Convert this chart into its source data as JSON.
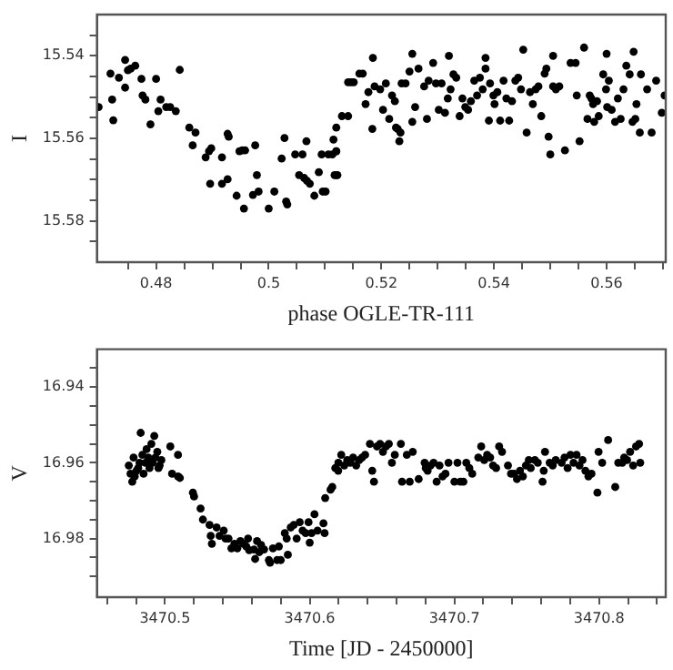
{
  "chart_data": [
    {
      "type": "scatter",
      "xlabel": "phase OGLE-TR-111",
      "ylabel": "I",
      "marker": "circle",
      "grid": false,
      "xlim": [
        0.4695,
        0.5705
      ],
      "ylim": [
        15.59,
        15.53
      ],
      "xticks": [
        {
          "value": 0.475,
          "label": null
        },
        0.48,
        {
          "value": 0.485,
          "label": null
        },
        {
          "value": 0.49,
          "label": null
        },
        {
          "value": 0.495,
          "label": null
        },
        0.5,
        {
          "value": 0.505,
          "label": null
        },
        {
          "value": 0.51,
          "label": null
        },
        {
          "value": 0.515,
          "label": null
        },
        0.52,
        {
          "value": 0.525,
          "label": null
        },
        {
          "value": 0.53,
          "label": null
        },
        {
          "value": 0.535,
          "label": null
        },
        0.54,
        {
          "value": 0.545,
          "label": null
        },
        {
          "value": 0.55,
          "label": null
        },
        {
          "value": 0.555,
          "label": null
        },
        0.56,
        {
          "value": 0.565,
          "label": null
        },
        {
          "value": 0.57,
          "label": null
        }
      ],
      "yticks": [
        {
          "value": 15.535,
          "label": null
        },
        15.54,
        {
          "value": 15.545,
          "label": null
        },
        {
          "value": 15.55,
          "label": null
        },
        {
          "value": 15.555,
          "label": null
        },
        15.56,
        {
          "value": 15.565,
          "label": null
        },
        {
          "value": 15.57,
          "label": null
        },
        {
          "value": 15.575,
          "label": null
        },
        15.58,
        {
          "value": 15.585,
          "label": null
        }
      ],
      "series": [
        {
          "color": "#000000",
          "x": [
            0.4698,
            0.4719,
            0.4722,
            0.4724,
            0.4734,
            0.4745,
            0.475,
            0.4755,
            0.4763,
            0.4774,
            0.4776,
            0.4781,
            0.479,
            0.48,
            0.4804,
            0.4808,
            0.4818,
            0.4825,
            0.4835,
            0.4842,
            0.4859,
            0.4865,
            0.487,
            0.4888,
            0.4894,
            0.4896,
            0.4898,
            0.4917,
            0.4917,
            0.4927,
            0.4927,
            0.4929,
            0.4943,
            0.4948,
            0.4953,
            0.4956,
            0.4958,
            0.4972,
            0.4976,
            0.4979,
            0.4982,
            0.5,
            0.501,
            0.5023,
            0.5028,
            0.5031,
            0.5033,
            0.5047,
            0.5054,
            0.506,
            0.5063,
            0.5067,
            0.5068,
            0.5073,
            0.5081,
            0.5089,
            0.5094,
            0.5096,
            0.5101,
            0.5106,
            0.5113,
            0.5115,
            0.5117,
            0.512,
            0.5122,
            0.512,
            0.512,
            0.512,
            0.513,
            0.5141,
            0.5141,
            0.5146,
            0.5151,
            0.5161,
            0.5167,
            0.5172,
            0.5177,
            0.5184,
            0.5188,
            0.5198,
            0.5203,
            0.5208,
            0.5214,
            0.5219,
            0.5224,
            0.5226,
            0.5229,
            0.5232,
            0.5234,
            0.5236,
            0.5243,
            0.525,
            0.5255,
            0.526,
            0.5266,
            0.5276,
            0.5281,
            0.5284,
            0.5292,
            0.5297,
            0.5302,
            0.5307,
            0.5313,
            0.5318,
            0.5323,
            0.5328,
            0.5333,
            0.5339,
            0.5344,
            0.5349,
            0.5354,
            0.5359,
            0.5365,
            0.537,
            0.5375,
            0.538,
            0.5385,
            0.5391,
            0.5393,
            0.5399,
            0.5401,
            0.5406,
            0.5411,
            0.5417,
            0.5422,
            0.5427,
            0.5432,
            0.5438,
            0.5443,
            0.5448,
            0.5458,
            0.5464,
            0.5469,
            0.5474,
            0.5479,
            0.5484,
            0.549,
            0.5493,
            0.5497,
            0.55,
            0.5505,
            0.551,
            0.5516,
            0.5526,
            0.5536,
            0.5545,
            0.5547,
            0.5552,
            0.5566,
            0.557,
            0.5573,
            0.5576,
            0.5578,
            0.5583,
            0.5586,
            0.5594,
            0.5599,
            0.5601,
            0.5604,
            0.5609,
            0.5615,
            0.562,
            0.5625,
            0.563,
            0.5635,
            0.5641,
            0.5646,
            0.5651,
            0.5653,
            0.5659,
            0.5661,
            0.5672,
            0.568,
            0.5688,
            0.5698,
            0.5703,
            0.5185,
            0.5255,
            0.532,
            0.5385,
            0.5452,
            0.5505,
            0.556,
            0.56,
            0.5648,
            0.4745
          ],
          "values": [
            15.5524,
            15.5443,
            15.5506,
            15.5556,
            15.5453,
            15.5477,
            15.5435,
            15.5431,
            15.5424,
            15.5456,
            15.5496,
            15.5506,
            15.5566,
            15.5456,
            15.5534,
            15.5506,
            15.5524,
            15.5524,
            15.5534,
            15.5434,
            15.5574,
            15.5617,
            15.5586,
            15.5646,
            15.5631,
            15.571,
            15.5624,
            15.5646,
            15.571,
            15.5589,
            15.5699,
            15.5596,
            15.5739,
            15.5631,
            15.5629,
            15.577,
            15.5629,
            15.5737,
            15.5617,
            15.5689,
            15.5729,
            15.577,
            15.5729,
            15.5649,
            15.5599,
            15.5753,
            15.576,
            15.5639,
            15.5689,
            15.5639,
            15.5696,
            15.5607,
            15.5703,
            15.571,
            15.5739,
            15.5682,
            15.5639,
            15.5729,
            15.5729,
            15.5639,
            15.5639,
            15.5603,
            15.5689,
            15.5631,
            15.5689,
            15.5574,
            15.5631,
            15.5689,
            15.5546,
            15.5546,
            15.5464,
            15.5464,
            15.5464,
            15.5443,
            15.5443,
            15.5517,
            15.5488,
            15.5577,
            15.5474,
            15.5481,
            15.5531,
            15.5467,
            15.5553,
            15.5496,
            15.551,
            15.5574,
            15.5577,
            15.5607,
            15.5586,
            15.5467,
            15.5467,
            15.5438,
            15.556,
            15.5524,
            15.5431,
            15.5474,
            15.5553,
            15.546,
            15.5417,
            15.5467,
            15.5531,
            15.5467,
            15.5538,
            15.5503,
            15.5481,
            15.5445,
            15.5453,
            15.5546,
            15.5503,
            15.5524,
            15.5531,
            15.551,
            15.546,
            15.5496,
            15.5453,
            15.5481,
            15.5431,
            15.5557,
            15.5467,
            15.5496,
            15.5517,
            15.5488,
            15.5557,
            15.546,
            15.5503,
            15.5557,
            15.551,
            15.546,
            15.5453,
            15.5481,
            15.5586,
            15.5488,
            15.5517,
            15.5481,
            15.5474,
            15.5546,
            15.5443,
            15.5431,
            15.5596,
            15.5639,
            15.5474,
            15.5481,
            15.5474,
            15.5629,
            15.5417,
            15.5417,
            15.5496,
            15.5607,
            15.5553,
            15.5496,
            15.5503,
            15.5517,
            15.556,
            15.551,
            15.5546,
            15.5445,
            15.5481,
            15.5524,
            15.546,
            15.5531,
            15.556,
            15.5503,
            15.5553,
            15.5481,
            15.5424,
            15.5445,
            15.556,
            15.5553,
            15.5517,
            15.5586,
            15.5445,
            15.5481,
            15.5586,
            15.546,
            15.5538,
            15.5496,
            15.5405,
            15.5395,
            15.54,
            15.5405,
            15.5385,
            15.54,
            15.538,
            15.5395,
            15.539,
            15.541
          ]
        }
      ]
    },
    {
      "type": "scatter",
      "xlabel": "Time [JD - 2450000]",
      "ylabel": "V",
      "marker": "circle",
      "grid": false,
      "xlim": [
        3470.453,
        3470.846
      ],
      "ylim": [
        16.9955,
        16.93
      ],
      "xticks": [
        {
          "value": 3470.46,
          "label": null
        },
        {
          "value": 3470.48,
          "label": null
        },
        3470.5,
        {
          "value": 3470.52,
          "label": null
        },
        {
          "value": 3470.54,
          "label": null
        },
        {
          "value": 3470.56,
          "label": null
        },
        {
          "value": 3470.58,
          "label": null
        },
        3470.6,
        {
          "value": 3470.62,
          "label": null
        },
        {
          "value": 3470.64,
          "label": null
        },
        {
          "value": 3470.66,
          "label": null
        },
        {
          "value": 3470.68,
          "label": null
        },
        3470.7,
        {
          "value": 3470.72,
          "label": null
        },
        {
          "value": 3470.74,
          "label": null
        },
        {
          "value": 3470.76,
          "label": null
        },
        {
          "value": 3470.78,
          "label": null
        },
        3470.8,
        {
          "value": 3470.82,
          "label": null
        },
        {
          "value": 3470.84,
          "label": null
        }
      ],
      "yticks": [
        {
          "value": 16.935,
          "label": null
        },
        16.94,
        {
          "value": 16.945,
          "label": null
        },
        {
          "value": 16.95,
          "label": null
        },
        {
          "value": 16.955,
          "label": null
        },
        16.96,
        {
          "value": 16.965,
          "label": null
        },
        {
          "value": 16.97,
          "label": null
        },
        {
          "value": 16.975,
          "label": null
        },
        16.98,
        {
          "value": 16.985,
          "label": null
        },
        {
          "value": 16.99,
          "label": null
        }
      ],
      "series": [
        {
          "color": "#000000",
          "x": [
            3470.475,
            3470.4762,
            3470.4774,
            3470.4783,
            3470.4791,
            3470.4803,
            3470.4815,
            3470.4824,
            3470.4832,
            3470.4844,
            3470.4852,
            3470.4865,
            3470.4873,
            3470.4885,
            3470.4893,
            3470.4906,
            3470.4914,
            3470.4926,
            3470.4934,
            3470.4947,
            3470.4955,
            3470.4963,
            3470.4975,
            3470.5037,
            3470.5049,
            3470.509,
            3470.509,
            3470.5103,
            3470.5193,
            3470.5201,
            3470.5246,
            3470.5262,
            3470.5308,
            3470.5316,
            3470.5324,
            3470.5357,
            3470.5377,
            3470.5406,
            3470.5418,
            3470.5439,
            3470.5459,
            3470.548,
            3470.55,
            3470.5521,
            3470.5541,
            3470.5562,
            3470.5574,
            3470.5582,
            3470.5615,
            3470.5623,
            3470.5636,
            3470.5652,
            3470.5664,
            3470.5685,
            3470.5718,
            3470.5726,
            3470.5746,
            3470.5775,
            3470.5787,
            3470.58,
            3470.5828,
            3470.5841,
            3470.5849,
            3470.5869,
            3470.589,
            3470.591,
            3470.5931,
            3470.5951,
            3470.5972,
            3470.5992,
            3470.6,
            3470.6013,
            3470.6033,
            3470.6054,
            3470.6095,
            3470.6103,
            3470.6107,
            3470.6144,
            3470.6156,
            3470.6197,
            3470.6177,
            3470.6198,
            3470.6218,
            3470.6239,
            3470.6259,
            3470.628,
            3470.63,
            3470.6321,
            3470.6342,
            3470.6362,
            3470.6383,
            3470.6416,
            3470.6432,
            3470.6444,
            3470.6465,
            3470.6486,
            3470.6506,
            3470.6527,
            3470.6547,
            3470.6568,
            3470.6588,
            3470.663,
            3470.6638,
            3470.6671,
            3470.6691,
            3470.6712,
            3470.6753,
            3470.6794,
            3470.6802,
            3470.6815,
            3470.6835,
            3470.6856,
            3470.6877,
            3470.6897,
            3470.6918,
            3470.6938,
            3470.6959,
            3470.7,
            3470.7021,
            3470.7041,
            3470.7062,
            3470.7082,
            3470.7103,
            3470.7123,
            3470.7165,
            3470.7185,
            3470.7206,
            3470.7226,
            3470.7247,
            3470.7267,
            3470.7288,
            3470.7309,
            3470.7329,
            3470.737,
            3470.7391,
            3470.7412,
            3470.7432,
            3470.7453,
            3470.7473,
            3470.7494,
            3470.7514,
            3470.7527,
            3470.7556,
            3470.7576,
            3470.7609,
            3470.7617,
            3470.7626,
            3470.7658,
            3470.7679,
            3470.77,
            3470.7741,
            3470.7761,
            3470.7782,
            3470.7802,
            3470.7823,
            3470.7844,
            3470.7864,
            3470.7885,
            3470.7905,
            3470.7926,
            3470.7947,
            3470.7988,
            3470.7996,
            3470.8021,
            3470.8062,
            3470.8111,
            3470.8132,
            3470.816,
            3470.8173,
            3470.8193,
            3470.8214,
            3470.8235,
            3470.8255,
            3470.8276,
            3470.8284
          ],
          "values": [
            16.9607,
            16.9629,
            16.965,
            16.9586,
            16.9636,
            16.9621,
            16.9614,
            16.96,
            16.9521,
            16.9579,
            16.9629,
            16.96,
            16.9564,
            16.9586,
            16.9614,
            16.955,
            16.96,
            16.9529,
            16.9586,
            16.9571,
            16.9614,
            16.9607,
            16.9593,
            16.9557,
            16.9629,
            16.9579,
            16.9636,
            16.964,
            16.9679,
            16.9689,
            16.9721,
            16.975,
            16.9764,
            16.9793,
            16.9814,
            16.9771,
            16.9793,
            16.9779,
            16.98,
            16.98,
            16.9826,
            16.9814,
            16.9826,
            16.9807,
            16.9814,
            16.9821,
            16.98,
            16.9831,
            16.9829,
            16.9854,
            16.9807,
            16.9836,
            16.9817,
            16.9829,
            16.9857,
            16.9864,
            16.9826,
            16.9857,
            16.9821,
            16.9857,
            16.9786,
            16.98,
            16.9843,
            16.9771,
            16.9764,
            16.98,
            16.9757,
            16.9779,
            16.9786,
            16.9757,
            16.9811,
            16.9786,
            16.9736,
            16.9779,
            16.976,
            16.9786,
            16.9693,
            16.9671,
            16.9664,
            16.9621,
            16.9614,
            16.96,
            16.9579,
            16.9607,
            16.9593,
            16.96,
            16.9586,
            16.9607,
            16.9593,
            16.9586,
            16.9579,
            16.955,
            16.9621,
            16.965,
            16.9557,
            16.955,
            16.9571,
            16.9557,
            16.955,
            16.96,
            16.9579,
            16.955,
            16.965,
            16.9579,
            16.965,
            16.9571,
            16.9643,
            16.96,
            16.9614,
            16.9621,
            16.9607,
            16.96,
            16.965,
            16.9607,
            16.9636,
            16.9629,
            16.96,
            16.965,
            16.96,
            16.965,
            16.965,
            16.96,
            16.9614,
            16.9629,
            16.9586,
            16.9557,
            16.9593,
            16.9579,
            16.9586,
            16.9607,
            16.9614,
            16.9557,
            16.9571,
            16.9607,
            16.9629,
            16.9629,
            16.9643,
            16.9621,
            16.9636,
            16.9607,
            16.9593,
            16.9614,
            16.9593,
            16.96,
            16.965,
            16.9621,
            16.9571,
            16.96,
            16.9607,
            16.9593,
            16.96,
            16.9586,
            16.9614,
            16.9579,
            16.96,
            16.9579,
            16.9607,
            16.9593,
            16.9621,
            16.9636,
            16.9629,
            16.9679,
            16.9571,
            16.96,
            16.954,
            16.9664,
            16.96,
            16.96,
            16.9586,
            16.9593,
            16.9571,
            16.9607,
            16.9557,
            16.955,
            16.96
          ]
        }
      ]
    }
  ]
}
